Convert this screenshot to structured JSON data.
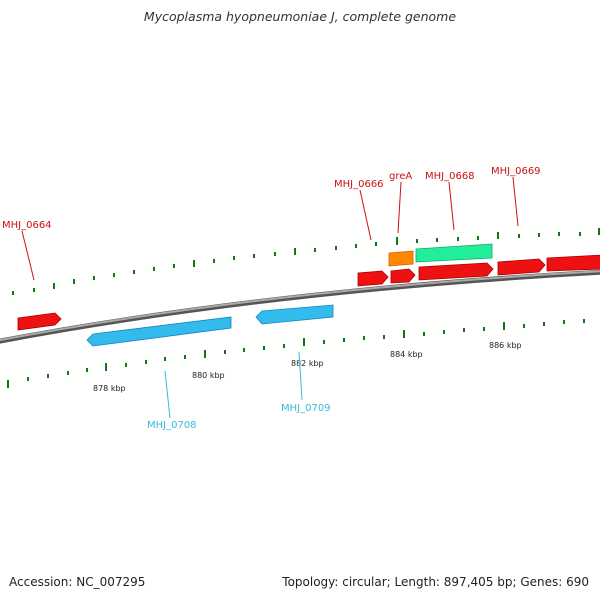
{
  "title": "Mycoplasma hyopneumoniae J, complete genome",
  "footer": {
    "accession": "Accession: NC_007295",
    "topology": "Topology: circular; Length: 897,405 bp; Genes: 690"
  },
  "colors": {
    "backbone": "#888888",
    "tick": "#117711",
    "gene_red": "#ee1111",
    "gene_blue": "#33bbee",
    "gene_orange": "#ff8800",
    "gene_green": "#22ee99",
    "label_red": "#cc1111",
    "label_blue": "#33bbdd"
  },
  "scale_labels": [
    "878 kbp",
    "880 kbp",
    "882 kbp",
    "884 kbp",
    "886 kbp"
  ],
  "gene_labels": {
    "forward": [
      "MHJ_0664",
      "MHJ_0666",
      "greA",
      "MHJ_0668",
      "MHJ_0669"
    ],
    "reverse": [
      "MHJ_0708",
      "MHJ_0709"
    ]
  }
}
